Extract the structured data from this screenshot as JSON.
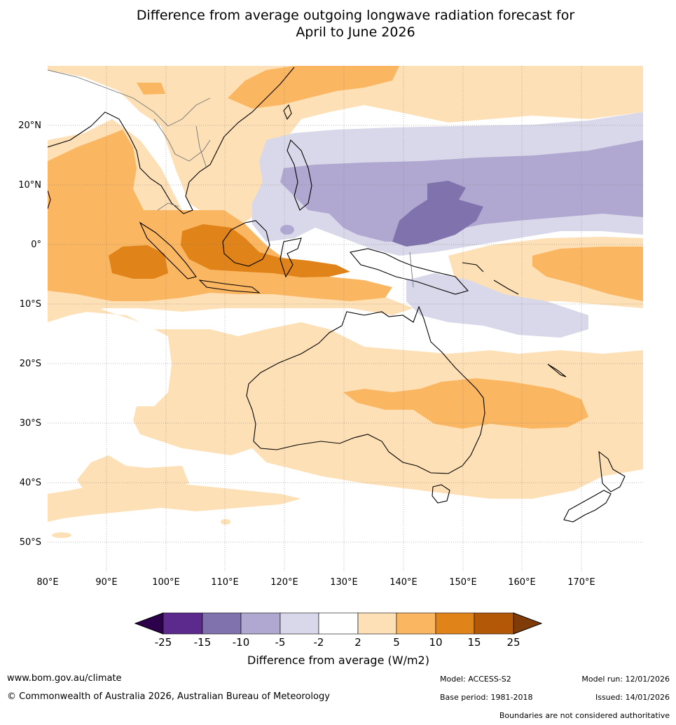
{
  "title_line1": "Difference from average outgoing longwave radiation forecast for",
  "title_line2": "April to June 2026",
  "lon_labels": [
    "80°E",
    "90°E",
    "100°E",
    "110°E",
    "120°E",
    "130°E",
    "140°E",
    "150°E",
    "160°E",
    "170°E"
  ],
  "lat_labels": [
    "20°N",
    "10°N",
    "0°",
    "10°S",
    "20°S",
    "30°S",
    "40°S",
    "50°S"
  ],
  "colorbar": {
    "ticks": [
      "-25",
      "-15",
      "-10",
      "-5",
      "-2",
      "2",
      "5",
      "10",
      "15",
      "25"
    ],
    "title": "Difference from average (W/m2)",
    "colors": [
      "#5b2a8c",
      "#8073ad",
      "#b0a8d0",
      "#d8d8ea",
      "#ffffff",
      "#fee0b6",
      "#fbb661",
      "#e0841a",
      "#b35806"
    ],
    "low_end": "#2d004b",
    "high_end": "#7f3b08"
  },
  "footer": {
    "url": "www.bom.gov.au/climate",
    "copyright": "© Commonwealth of Australia 2026, Australian Bureau of Meteorology",
    "model": "Model: ACCESS-S2",
    "base_period": "Base period: 1981-2018",
    "model_run": "Model run: 12/01/2026",
    "issued": "Issued: 14/01/2026",
    "note": "Boundaries are not considered authoritative"
  }
}
